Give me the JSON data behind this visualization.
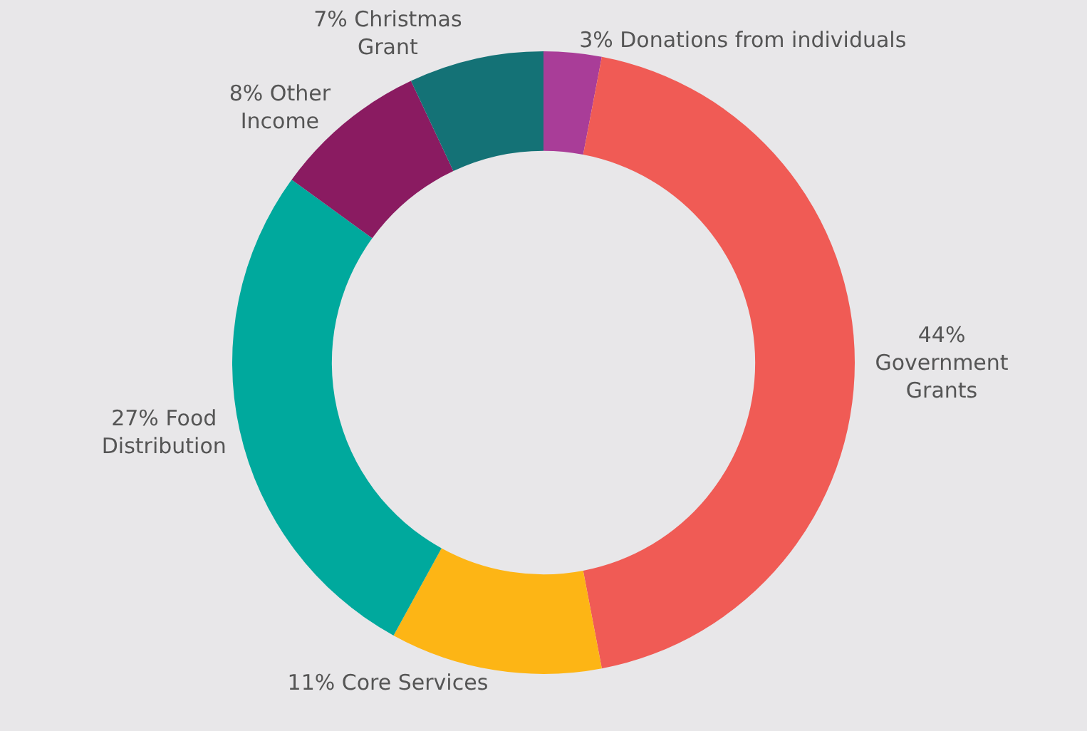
{
  "chart_data": {
    "type": "donut",
    "categories": [
      "Donations from individuals",
      "Government Grants",
      "Core Services",
      "Food Distribution",
      "Other Income",
      "Christmas Grant"
    ],
    "values": [
      3,
      44,
      11,
      27,
      8,
      7
    ],
    "value_labels": [
      "3%",
      "44%",
      "11%",
      "27%",
      "8%",
      "7%"
    ],
    "colors": [
      "#a93d98",
      "#f05b55",
      "#fdb515",
      "#00a99d",
      "#8a1b61",
      "#147276"
    ],
    "legend": false
  }
}
